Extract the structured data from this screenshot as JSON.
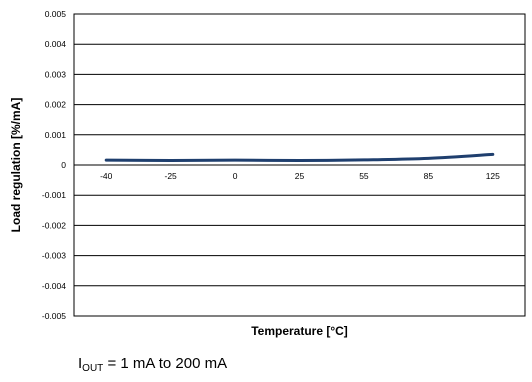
{
  "chart_data": {
    "type": "line",
    "xlabel": "Temperature [°C]",
    "ylabel": "Load regulation [%/mA]",
    "categories": [
      "-40",
      "-25",
      "0",
      "25",
      "55",
      "85",
      "125"
    ],
    "yticks": [
      "0.005",
      "0.004",
      "0.003",
      "0.002",
      "0.001",
      "0",
      "-0.001",
      "-0.002",
      "-0.003",
      "-0.004",
      "-0.005"
    ],
    "ylim": [
      -0.005,
      0.005
    ],
    "grid": true,
    "series": [
      {
        "values": [
          0.00016,
          0.00015,
          0.00016,
          0.00015,
          0.00017,
          0.00022,
          0.00035
        ],
        "color": "#1f3f6e"
      }
    ]
  },
  "caption": {
    "symbol": "I",
    "subscript": "OUT",
    "text": " = 1 mA to 200 mA"
  }
}
